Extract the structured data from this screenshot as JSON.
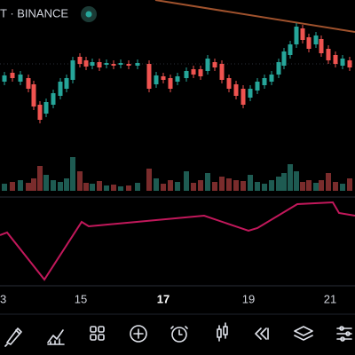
{
  "header": {
    "symbol": "T · BINANCE"
  },
  "time_axis": {
    "labels": [
      "3",
      "15",
      "17",
      "19",
      "21"
    ]
  }
}
